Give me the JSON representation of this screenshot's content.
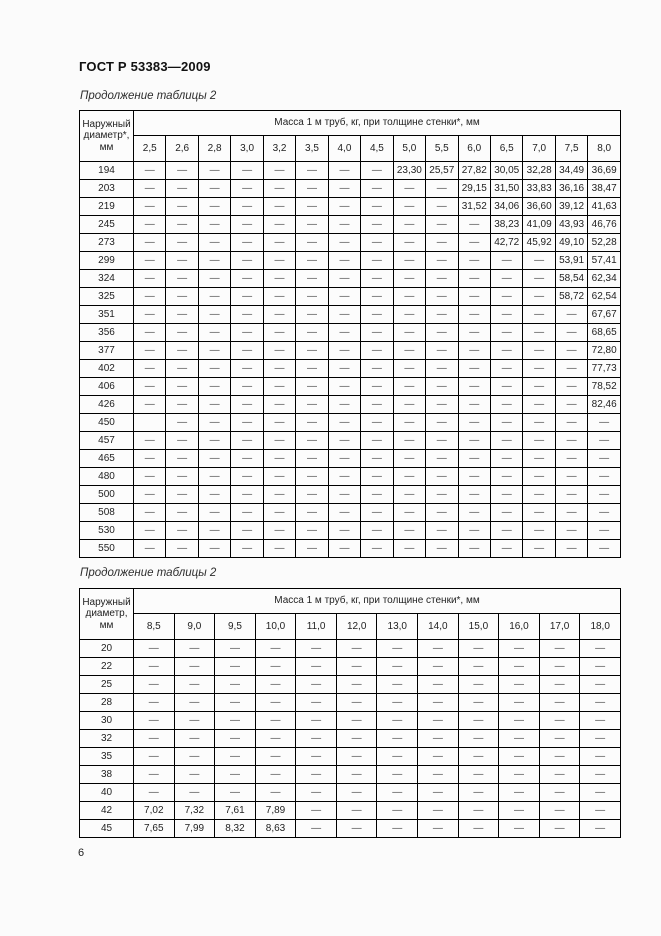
{
  "page": {
    "doc_title": "ГОСТ Р 53383—2009",
    "page_number": "6"
  },
  "tables": [
    {
      "caption": "Продолжение таблицы 2",
      "corner_header_lines": [
        "Наружный",
        "диаметр*,",
        "мм"
      ],
      "group_header": "Масса 1 м труб, кг, при толщине стенки*, мм",
      "wall_thickness_columns": [
        "2,5",
        "2,6",
        "2,8",
        "3,0",
        "3,2",
        "3,5",
        "4,0",
        "4,5",
        "5,0",
        "5,5",
        "6,0",
        "6,5",
        "7,0",
        "7,5",
        "8,0"
      ],
      "rows": [
        {
          "diameter": "194",
          "values": [
            "—",
            "—",
            "—",
            "—",
            "—",
            "—",
            "—",
            "—",
            "23,30",
            "25,57",
            "27,82",
            "30,05",
            "32,28",
            "34,49",
            "36,69"
          ]
        },
        {
          "diameter": "203",
          "values": [
            "—",
            "—",
            "—",
            "—",
            "—",
            "—",
            "—",
            "—",
            "—",
            "—",
            "29,15",
            "31,50",
            "33,83",
            "36,16",
            "38,47"
          ]
        },
        {
          "diameter": "219",
          "values": [
            "—",
            "—",
            "—",
            "—",
            "—",
            "—",
            "—",
            "—",
            "—",
            "—",
            "31,52",
            "34,06",
            "36,60",
            "39,12",
            "41,63"
          ]
        },
        {
          "diameter": "245",
          "values": [
            "—",
            "—",
            "—",
            "—",
            "—",
            "—",
            "—",
            "—",
            "—",
            "—",
            "—",
            "38,23",
            "41,09",
            "43,93",
            "46,76"
          ]
        },
        {
          "diameter": "273",
          "values": [
            "—",
            "—",
            "—",
            "—",
            "—",
            "—",
            "—",
            "—",
            "—",
            "—",
            "—",
            "42,72",
            "45,92",
            "49,10",
            "52,28"
          ]
        },
        {
          "diameter": "299",
          "values": [
            "—",
            "—",
            "—",
            "—",
            "—",
            "—",
            "—",
            "—",
            "—",
            "—",
            "—",
            "—",
            "—",
            "53,91",
            "57,41"
          ]
        },
        {
          "diameter": "324",
          "values": [
            "—",
            "—",
            "—",
            "—",
            "—",
            "—",
            "—",
            "—",
            "—",
            "—",
            "—",
            "—",
            "—",
            "58,54",
            "62,34"
          ]
        },
        {
          "diameter": "325",
          "values": [
            "—",
            "—",
            "—",
            "—",
            "—",
            "—",
            "—",
            "—",
            "—",
            "—",
            "—",
            "—",
            "—",
            "58,72",
            "62,54"
          ]
        },
        {
          "diameter": "351",
          "values": [
            "—",
            "—",
            "—",
            "—",
            "—",
            "—",
            "—",
            "—",
            "—",
            "—",
            "—",
            "—",
            "—",
            "—",
            "67,67"
          ]
        },
        {
          "diameter": "356",
          "values": [
            "—",
            "—",
            "—",
            "—",
            "—",
            "—",
            "—",
            "—",
            "—",
            "—",
            "—",
            "—",
            "—",
            "—",
            "68,65"
          ]
        },
        {
          "diameter": "377",
          "values": [
            "—",
            "—",
            "—",
            "—",
            "—",
            "—",
            "—",
            "—",
            "—",
            "—",
            "—",
            "—",
            "—",
            "—",
            "72,80"
          ]
        },
        {
          "diameter": "402",
          "values": [
            "—",
            "—",
            "—",
            "—",
            "—",
            "—",
            "—",
            "—",
            "—",
            "—",
            "—",
            "—",
            "—",
            "—",
            "77,73"
          ]
        },
        {
          "diameter": "406",
          "values": [
            "—",
            "—",
            "—",
            "—",
            "—",
            "—",
            "—",
            "—",
            "—",
            "—",
            "—",
            "—",
            "—",
            "—",
            "78,52"
          ]
        },
        {
          "diameter": "426",
          "values": [
            "—",
            "—",
            "—",
            "—",
            "—",
            "—",
            "—",
            "—",
            "—",
            "—",
            "—",
            "—",
            "—",
            "—",
            "82,46"
          ]
        },
        {
          "diameter": "450",
          "values": [
            "",
            "—",
            "—",
            "—",
            "—",
            "—",
            "—",
            "—",
            "—",
            "—",
            "—",
            "—",
            "—",
            "—",
            "—"
          ]
        },
        {
          "diameter": "457",
          "values": [
            "—",
            "—",
            "—",
            "—",
            "—",
            "—",
            "—",
            "—",
            "—",
            "—",
            "—",
            "—",
            "—",
            "—",
            "—"
          ]
        },
        {
          "diameter": "465",
          "values": [
            "—",
            "—",
            "—",
            "—",
            "—",
            "—",
            "—",
            "—",
            "—",
            "—",
            "—",
            "—",
            "—",
            "—",
            "—"
          ]
        },
        {
          "diameter": "480",
          "values": [
            "—",
            "—",
            "—",
            "—",
            "—",
            "—",
            "—",
            "—",
            "—",
            "—",
            "—",
            "—",
            "—",
            "—",
            "—"
          ]
        },
        {
          "diameter": "500",
          "values": [
            "—",
            "—",
            "—",
            "—",
            "—",
            "—",
            "—",
            "—",
            "—",
            "—",
            "—",
            "—",
            "—",
            "—",
            "—"
          ]
        },
        {
          "diameter": "508",
          "values": [
            "—",
            "—",
            "—",
            "—",
            "—",
            "—",
            "—",
            "—",
            "—",
            "—",
            "—",
            "—",
            "—",
            "—",
            "—"
          ]
        },
        {
          "diameter": "530",
          "values": [
            "—",
            "—",
            "—",
            "—",
            "—",
            "—",
            "—",
            "—",
            "—",
            "—",
            "—",
            "—",
            "—",
            "—",
            "—"
          ]
        },
        {
          "diameter": "550",
          "values": [
            "—",
            "—",
            "—",
            "—",
            "—",
            "—",
            "—",
            "—",
            "—",
            "—",
            "—",
            "—",
            "—",
            "—",
            "—"
          ]
        }
      ]
    },
    {
      "caption": "Продолжение таблицы 2",
      "corner_header_lines": [
        "Наружный",
        "диаметр,",
        "мм"
      ],
      "group_header": "Масса 1 м труб, кг, при толщине стенки*, мм",
      "wall_thickness_columns": [
        "8,5",
        "9,0",
        "9,5",
        "10,0",
        "11,0",
        "12,0",
        "13,0",
        "14,0",
        "15,0",
        "16,0",
        "17,0",
        "18,0"
      ],
      "rows": [
        {
          "diameter": "20",
          "values": [
            "—",
            "—",
            "—",
            "—",
            "—",
            "—",
            "—",
            "—",
            "—",
            "—",
            "—",
            "—"
          ]
        },
        {
          "diameter": "22",
          "values": [
            "—",
            "—",
            "—",
            "—",
            "—",
            "—",
            "—",
            "—",
            "—",
            "—",
            "—",
            "—"
          ]
        },
        {
          "diameter": "25",
          "values": [
            "—",
            "—",
            "—",
            "—",
            "—",
            "—",
            "—",
            "—",
            "—",
            "—",
            "—",
            "—"
          ]
        },
        {
          "diameter": "28",
          "values": [
            "—",
            "—",
            "—",
            "—",
            "—",
            "—",
            "—",
            "—",
            "—",
            "—",
            "—",
            "—"
          ]
        },
        {
          "diameter": "30",
          "values": [
            "—",
            "—",
            "—",
            "—",
            "—",
            "—",
            "—",
            "—",
            "—",
            "—",
            "—",
            "—"
          ]
        },
        {
          "diameter": "32",
          "values": [
            "—",
            "—",
            "—",
            "—",
            "—",
            "—",
            "—",
            "—",
            "—",
            "—",
            "—",
            "—"
          ]
        },
        {
          "diameter": "35",
          "values": [
            "—",
            "—",
            "—",
            "—",
            "—",
            "—",
            "—",
            "—",
            "—",
            "—",
            "—",
            "—"
          ]
        },
        {
          "diameter": "38",
          "values": [
            "—",
            "—",
            "—",
            "—",
            "—",
            "—",
            "—",
            "—",
            "—",
            "—",
            "—",
            "—"
          ]
        },
        {
          "diameter": "40",
          "values": [
            "—",
            "—",
            "—",
            "—",
            "—",
            "—",
            "—",
            "—",
            "—",
            "—",
            "—",
            "—"
          ]
        },
        {
          "diameter": "42",
          "values": [
            "7,02",
            "7,32",
            "7,61",
            "7,89",
            "—",
            "—",
            "—",
            "—",
            "—",
            "—",
            "—",
            "—"
          ]
        },
        {
          "diameter": "45",
          "values": [
            "7,65",
            "7,99",
            "8,32",
            "8,63",
            "—",
            "—",
            "—",
            "—",
            "—",
            "—",
            "—",
            "—"
          ]
        }
      ]
    }
  ]
}
